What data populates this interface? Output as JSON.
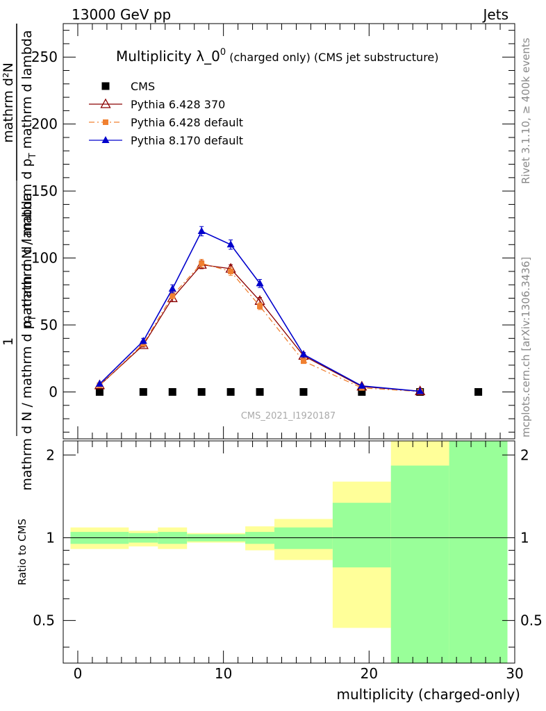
{
  "header": {
    "energy_label": "13000 GeV pp",
    "category_label": "Jets"
  },
  "side_labels": {
    "rivet": "Rivet 3.1.10, ≥ 400k events",
    "mcplots": "mcplots.cern.ch [arXiv:1306.3436]"
  },
  "watermark": "CMS_2021_I1920187",
  "colors": {
    "cms": "#000000",
    "pythia6_370": "#8b0000",
    "pythia6_default": "#f08030",
    "pythia8": "#0000cc",
    "band_outer": "#ffff99",
    "band_inner": "#99ff99"
  },
  "chart_data": [
    {
      "type": "line",
      "title": {
        "main": "Multiplicity λ_0",
        "sup": "0",
        "suffix": " (charged only) (CMS jet substructure)"
      },
      "ylabel": {
        "numerator": "mathrm d²N",
        "line1": "mathrm d N / mathrm d p",
        "line1_sub": "T",
        "line1_end": " mathrm d lambda",
        "left_one": "1",
        "denominator": "mathrm d N / mathrm d p",
        "denominator_sub": "T",
        "denominator_end": " mathrm d lambda"
      },
      "xlim": [
        -1,
        30
      ],
      "ylim": [
        -35,
        275
      ],
      "yticks": [
        0,
        50,
        100,
        150,
        200,
        250
      ],
      "legend_position": "top-left",
      "series": [
        {
          "name": "CMS",
          "marker": "square",
          "x": [
            1.5,
            4.5,
            6.5,
            8.5,
            10.5,
            12.5,
            15.5,
            19.5,
            23.5,
            27.5
          ],
          "y": [
            0,
            0,
            0,
            0,
            0,
            0,
            0,
            0,
            0,
            0
          ]
        },
        {
          "name": "Pythia 6.428 370",
          "marker": "open-triangle",
          "x": [
            1.5,
            4.5,
            6.5,
            8.5,
            10.5,
            12.5,
            15.5,
            19.5,
            23.5
          ],
          "y": [
            5,
            35,
            70,
            95,
            92,
            68,
            27,
            4,
            0.5
          ],
          "err": [
            0.5,
            1.5,
            2.5,
            3,
            3,
            2.5,
            1.5,
            0.5,
            0.2
          ]
        },
        {
          "name": "Pythia 6.428 default",
          "marker": "filled-square-small",
          "x": [
            1.5,
            4.5,
            6.5,
            8.5,
            10.5,
            12.5,
            15.5,
            19.5,
            23.5
          ],
          "y": [
            5,
            36,
            72,
            96,
            90,
            64,
            23,
            3,
            0.3
          ],
          "err": [
            0.5,
            1.5,
            2.5,
            3,
            3,
            2.5,
            1.5,
            0.5,
            0.2
          ]
        },
        {
          "name": "Pythia 8.170 default",
          "marker": "filled-triangle",
          "x": [
            1.5,
            4.5,
            6.5,
            8.5,
            10.5,
            12.5,
            15.5,
            19.5,
            23.5
          ],
          "y": [
            6,
            38,
            77,
            120,
            110,
            81,
            28,
            4.5,
            0.5
          ],
          "err": [
            0.5,
            2,
            3,
            3.5,
            3.5,
            3,
            1.5,
            0.5,
            0.2
          ]
        }
      ]
    },
    {
      "type": "area",
      "ylabel": "Ratio to CMS",
      "xlabel": "multiplicity (charged-only)",
      "xlim": [
        -1,
        30
      ],
      "ylim": [
        0.35,
        2.25
      ],
      "xticks": [
        0,
        10,
        20,
        30
      ],
      "yticks": [
        0.5,
        1,
        2
      ],
      "reference_line": 1,
      "bands": [
        {
          "x": [
            -0.5,
            3.5
          ],
          "outer": [
            0.91,
            1.09
          ],
          "inner": [
            0.95,
            1.05
          ]
        },
        {
          "x": [
            3.5,
            5.5
          ],
          "outer": [
            0.93,
            1.06
          ],
          "inner": [
            0.96,
            1.04
          ]
        },
        {
          "x": [
            5.5,
            7.5
          ],
          "outer": [
            0.91,
            1.09
          ],
          "inner": [
            0.95,
            1.05
          ]
        },
        {
          "x": [
            7.5,
            11.5
          ],
          "outer": [
            0.96,
            1.04
          ],
          "inner": [
            0.97,
            1.03
          ]
        },
        {
          "x": [
            11.5,
            13.5
          ],
          "outer": [
            0.9,
            1.1
          ],
          "inner": [
            0.95,
            1.05
          ]
        },
        {
          "x": [
            13.5,
            17.5
          ],
          "outer": [
            0.83,
            1.17
          ],
          "inner": [
            0.91,
            1.09
          ]
        },
        {
          "x": [
            17.5,
            21.5
          ],
          "outer": [
            0.47,
            1.6
          ],
          "inner": [
            0.78,
            1.34
          ]
        },
        {
          "x": [
            21.5,
            25.5
          ],
          "outer": [
            0.35,
            2.25
          ],
          "inner": [
            0.35,
            1.83
          ]
        },
        {
          "x": [
            25.5,
            29.5
          ],
          "outer": [
            0.35,
            2.25
          ],
          "inner": [
            0.35,
            2.25
          ]
        }
      ]
    }
  ]
}
